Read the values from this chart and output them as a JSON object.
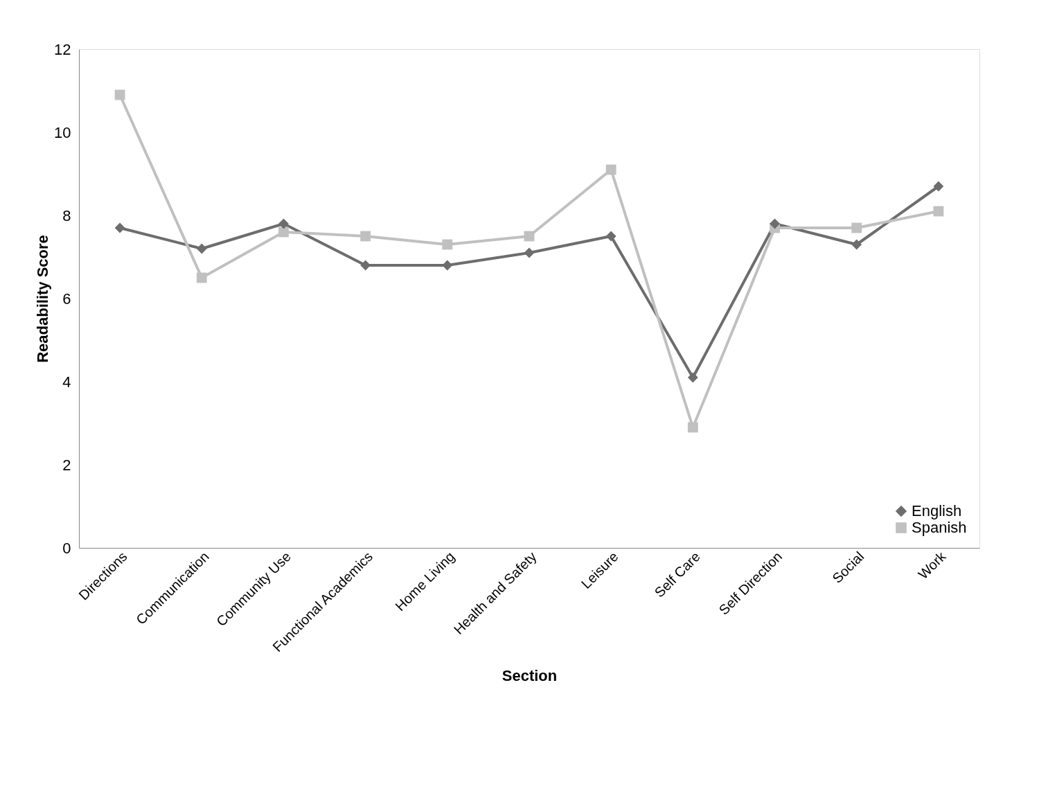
{
  "chart_data": {
    "type": "line",
    "xlabel": "Section",
    "ylabel": "Readability Score",
    "categories": [
      "Directions",
      "Communication",
      "Community Use",
      "Functional Academics",
      "Home Living",
      "Health and Safety",
      "Leisure",
      "Self Care",
      "Self Direction",
      "Social",
      "Work"
    ],
    "series": [
      {
        "name": "English",
        "color": "#6d6d6d",
        "marker": "diamond",
        "values": [
          7.7,
          7.2,
          7.8,
          6.8,
          6.8,
          7.1,
          7.5,
          4.1,
          7.8,
          7.3,
          8.7
        ]
      },
      {
        "name": "Spanish",
        "color": "#c0c0c0",
        "marker": "square",
        "values": [
          10.9,
          6.5,
          7.6,
          7.5,
          7.3,
          7.5,
          9.1,
          2.9,
          7.7,
          7.7,
          8.1
        ]
      }
    ],
    "ylim": [
      0,
      12
    ],
    "yticks": [
      0,
      2,
      4,
      6,
      8,
      10,
      12
    ],
    "grid": false,
    "legend": "bottom right",
    "line_style": "solid"
  }
}
